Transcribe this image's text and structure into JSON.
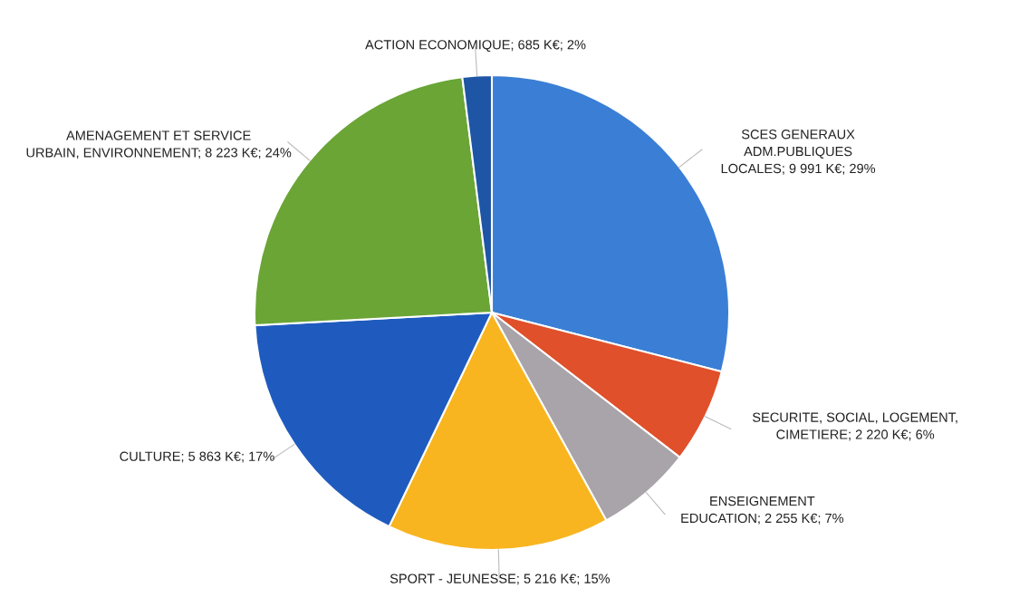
{
  "chart_data": {
    "type": "pie",
    "categories": [
      "SCES GENERAUX\nADM.PUBLIQUES\nLOCALES",
      "SECURITE, SOCIAL, LOGEMENT,\nCIMETIERE",
      "ENSEIGNEMENT\nEDUCATION",
      "SPORT - JEUNESSE",
      "CULTURE",
      "AMENAGEMENT ET SERVICE\nURBAIN, ENVIRONNEMENT",
      "ACTION ECONOMIQUE"
    ],
    "values": [
      9991,
      2220,
      2255,
      5216,
      5863,
      8223,
      685
    ],
    "colors": [
      "#3a7fd5",
      "#e0502a",
      "#a8a4aa",
      "#f8b520",
      "#1f5bbf",
      "#6aa536",
      "#1e55a5"
    ],
    "value_labels": [
      "9 991 K€; 29%",
      "2 220 K€; 6%",
      "2 255 K€; 7%",
      "5 216 K€; 15%",
      "5 863 K€; 17%",
      "8 223 K€; 24%",
      "685 K€; 2%"
    ]
  }
}
